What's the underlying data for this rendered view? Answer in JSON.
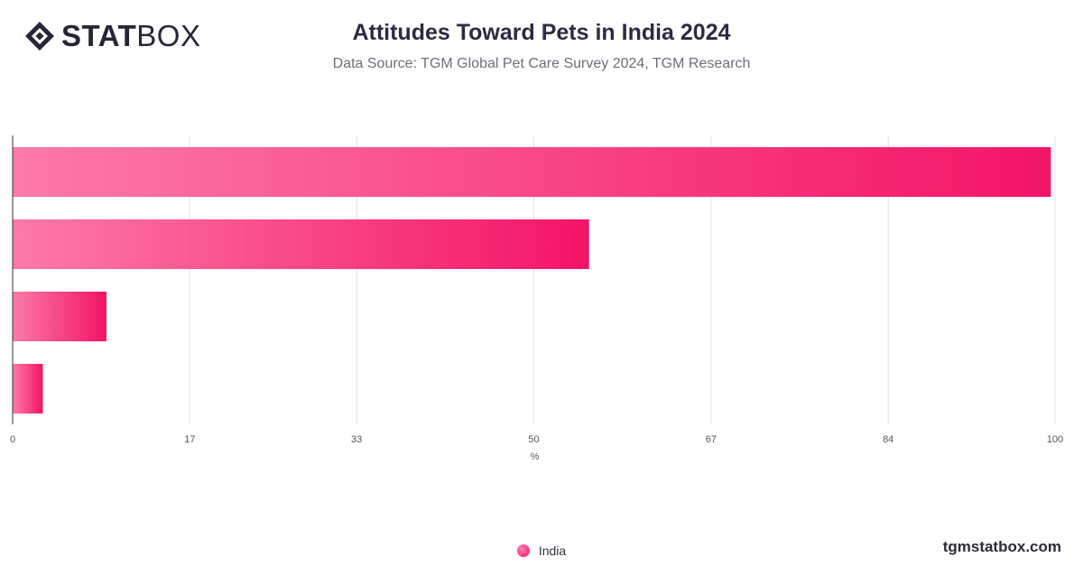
{
  "brand": {
    "logo_bold": "STAT",
    "logo_light": "BOX",
    "credit": "tgmstatbox.com"
  },
  "chart_data": {
    "type": "bar",
    "orientation": "horizontal",
    "title": "Attitudes Toward Pets in India 2024",
    "subtitle": "Data Source: TGM Global Pet Care Survey 2024, TGM Research",
    "xlabel": "%",
    "xlim": [
      0,
      100
    ],
    "ticks": [
      0,
      17,
      33,
      50,
      67,
      84,
      100
    ],
    "grid": true,
    "legend_position": "bottom",
    "series": [
      {
        "name": "India",
        "values": [
          99.6,
          55.3,
          9.0,
          2.9
        ]
      }
    ],
    "colors": {
      "bar_start": "#fd7aa8",
      "bar_end": "#f31465"
    }
  }
}
